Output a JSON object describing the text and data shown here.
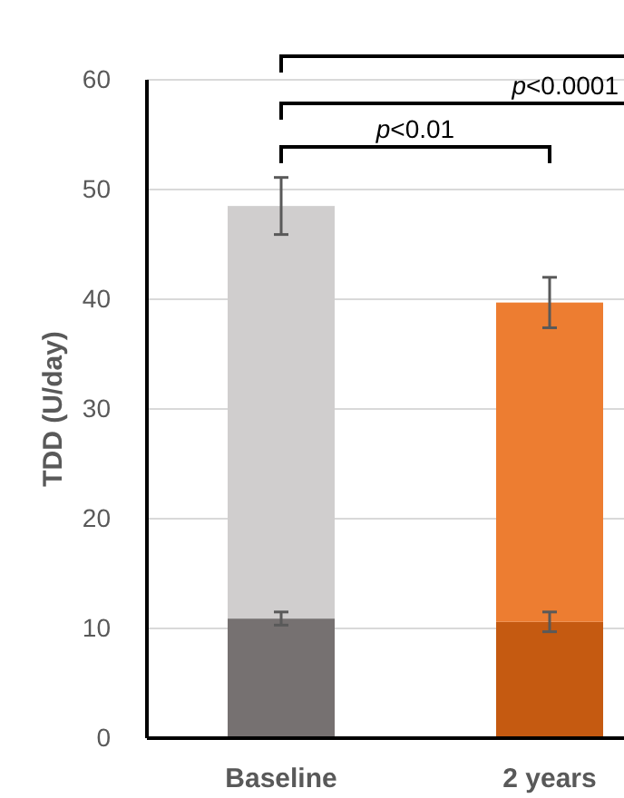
{
  "chart_data": {
    "type": "bar",
    "ylabel": "TDD (U/day)",
    "categories": [
      "Baseline",
      "2 years"
    ],
    "stacked": true,
    "series": [
      {
        "colors": [
          "#767171",
          "#c55a11"
        ],
        "values": [
          10.9,
          10.6
        ],
        "errors": [
          0.6,
          0.9
        ]
      },
      {
        "colors": [
          "#d0cece",
          "#ed7d31"
        ],
        "values": [
          37.6,
          29.1
        ],
        "errors": [
          2.6,
          2.3
        ]
      }
    ],
    "ylim": [
      0,
      60
    ],
    "yticks": [
      0,
      10,
      20,
      30,
      40,
      50,
      60
    ],
    "grid": "y",
    "annotations": [
      "p<0.01",
      "p<0.0001"
    ]
  }
}
